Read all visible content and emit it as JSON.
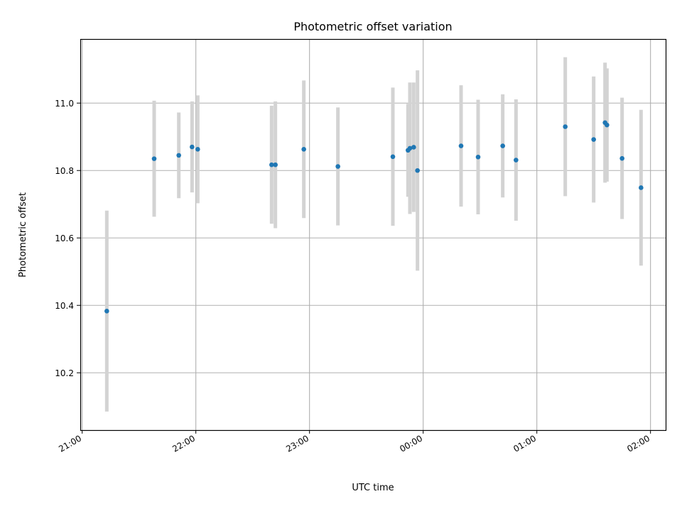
{
  "chart_data": {
    "type": "scatter",
    "title": "Photometric offset variation",
    "xlabel": "UTC time",
    "ylabel": "Photometric offset",
    "x_axis_type": "time",
    "xlim": [
      "20:59",
      "02:08"
    ],
    "ylim": [
      10.03,
      11.19
    ],
    "x_ticks": [
      "21:00",
      "22:00",
      "23:00",
      "00:00",
      "01:00",
      "02:00"
    ],
    "y_ticks": [
      10.2,
      10.4,
      10.6,
      10.8,
      11.0
    ],
    "grid": true,
    "legend": "none",
    "colors": {
      "marker": "#1f77b4",
      "errorbar": "#d3d3d3",
      "grid": "#b0b0b0"
    },
    "series": [
      {
        "x": [
          "21:13",
          "21:38",
          "21:51",
          "21:58",
          "22:01",
          "22:40",
          "22:42",
          "22:57",
          "23:15",
          "23:44",
          "23:52",
          "23:53",
          "23:55",
          "23:57",
          "00:20",
          "00:29",
          "00:42",
          "00:49",
          "01:15",
          "01:30",
          "01:36",
          "01:37",
          "01:45",
          "01:55"
        ],
        "y": [
          10.383,
          10.835,
          10.845,
          10.87,
          10.863,
          10.817,
          10.817,
          10.863,
          10.812,
          10.841,
          10.86,
          10.866,
          10.869,
          10.8,
          10.873,
          10.84,
          10.873,
          10.831,
          10.93,
          10.892,
          10.942,
          10.935,
          10.836,
          10.749
        ],
        "yerr": [
          0.298,
          0.172,
          0.127,
          0.135,
          0.16,
          0.175,
          0.188,
          0.204,
          0.175,
          0.205,
          0.138,
          0.195,
          0.192,
          0.297,
          0.18,
          0.17,
          0.153,
          0.18,
          0.206,
          0.187,
          0.178,
          0.168,
          0.18,
          0.231
        ]
      }
    ]
  }
}
